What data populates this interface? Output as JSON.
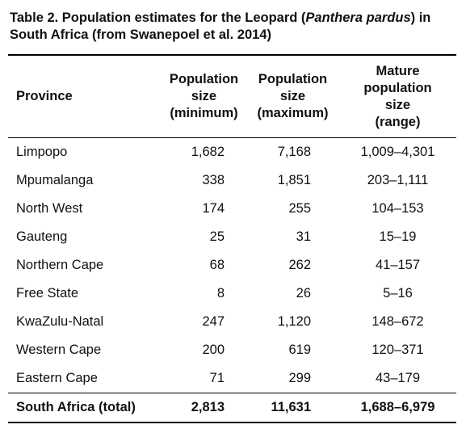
{
  "title": {
    "parts": [
      "Table 2. Population estimates for the Leopard (",
      "Panthera pardus",
      ") in South Africa (from Swanepoel et al. 2014)"
    ]
  },
  "table": {
    "columns": [
      [
        "Province"
      ],
      [
        "Population",
        "size",
        "(minimum)"
      ],
      [
        "Population",
        "size",
        "(maximum)"
      ],
      [
        "Mature",
        "population",
        "size",
        "(range)"
      ]
    ],
    "rows": [
      [
        "Limpopo",
        "1,682",
        "7,168",
        "1,009–4,301"
      ],
      [
        "Mpumalanga",
        "338",
        "1,851",
        "203–1,111"
      ],
      [
        "North West",
        "174",
        "255",
        "104–153"
      ],
      [
        "Gauteng",
        "25",
        "31",
        "15–19"
      ],
      [
        "Northern Cape",
        "68",
        "262",
        "41–157"
      ],
      [
        "Free State",
        "8",
        "26",
        "5–16"
      ],
      [
        "KwaZulu-Natal",
        "247",
        "1,120",
        "148–672"
      ],
      [
        "Western Cape",
        "200",
        "619",
        "120–371"
      ],
      [
        "Eastern Cape",
        "71",
        "299",
        "43–179"
      ]
    ],
    "total": [
      "South Africa (total)",
      "2,813",
      "11,631",
      "1,688–6,979"
    ]
  }
}
